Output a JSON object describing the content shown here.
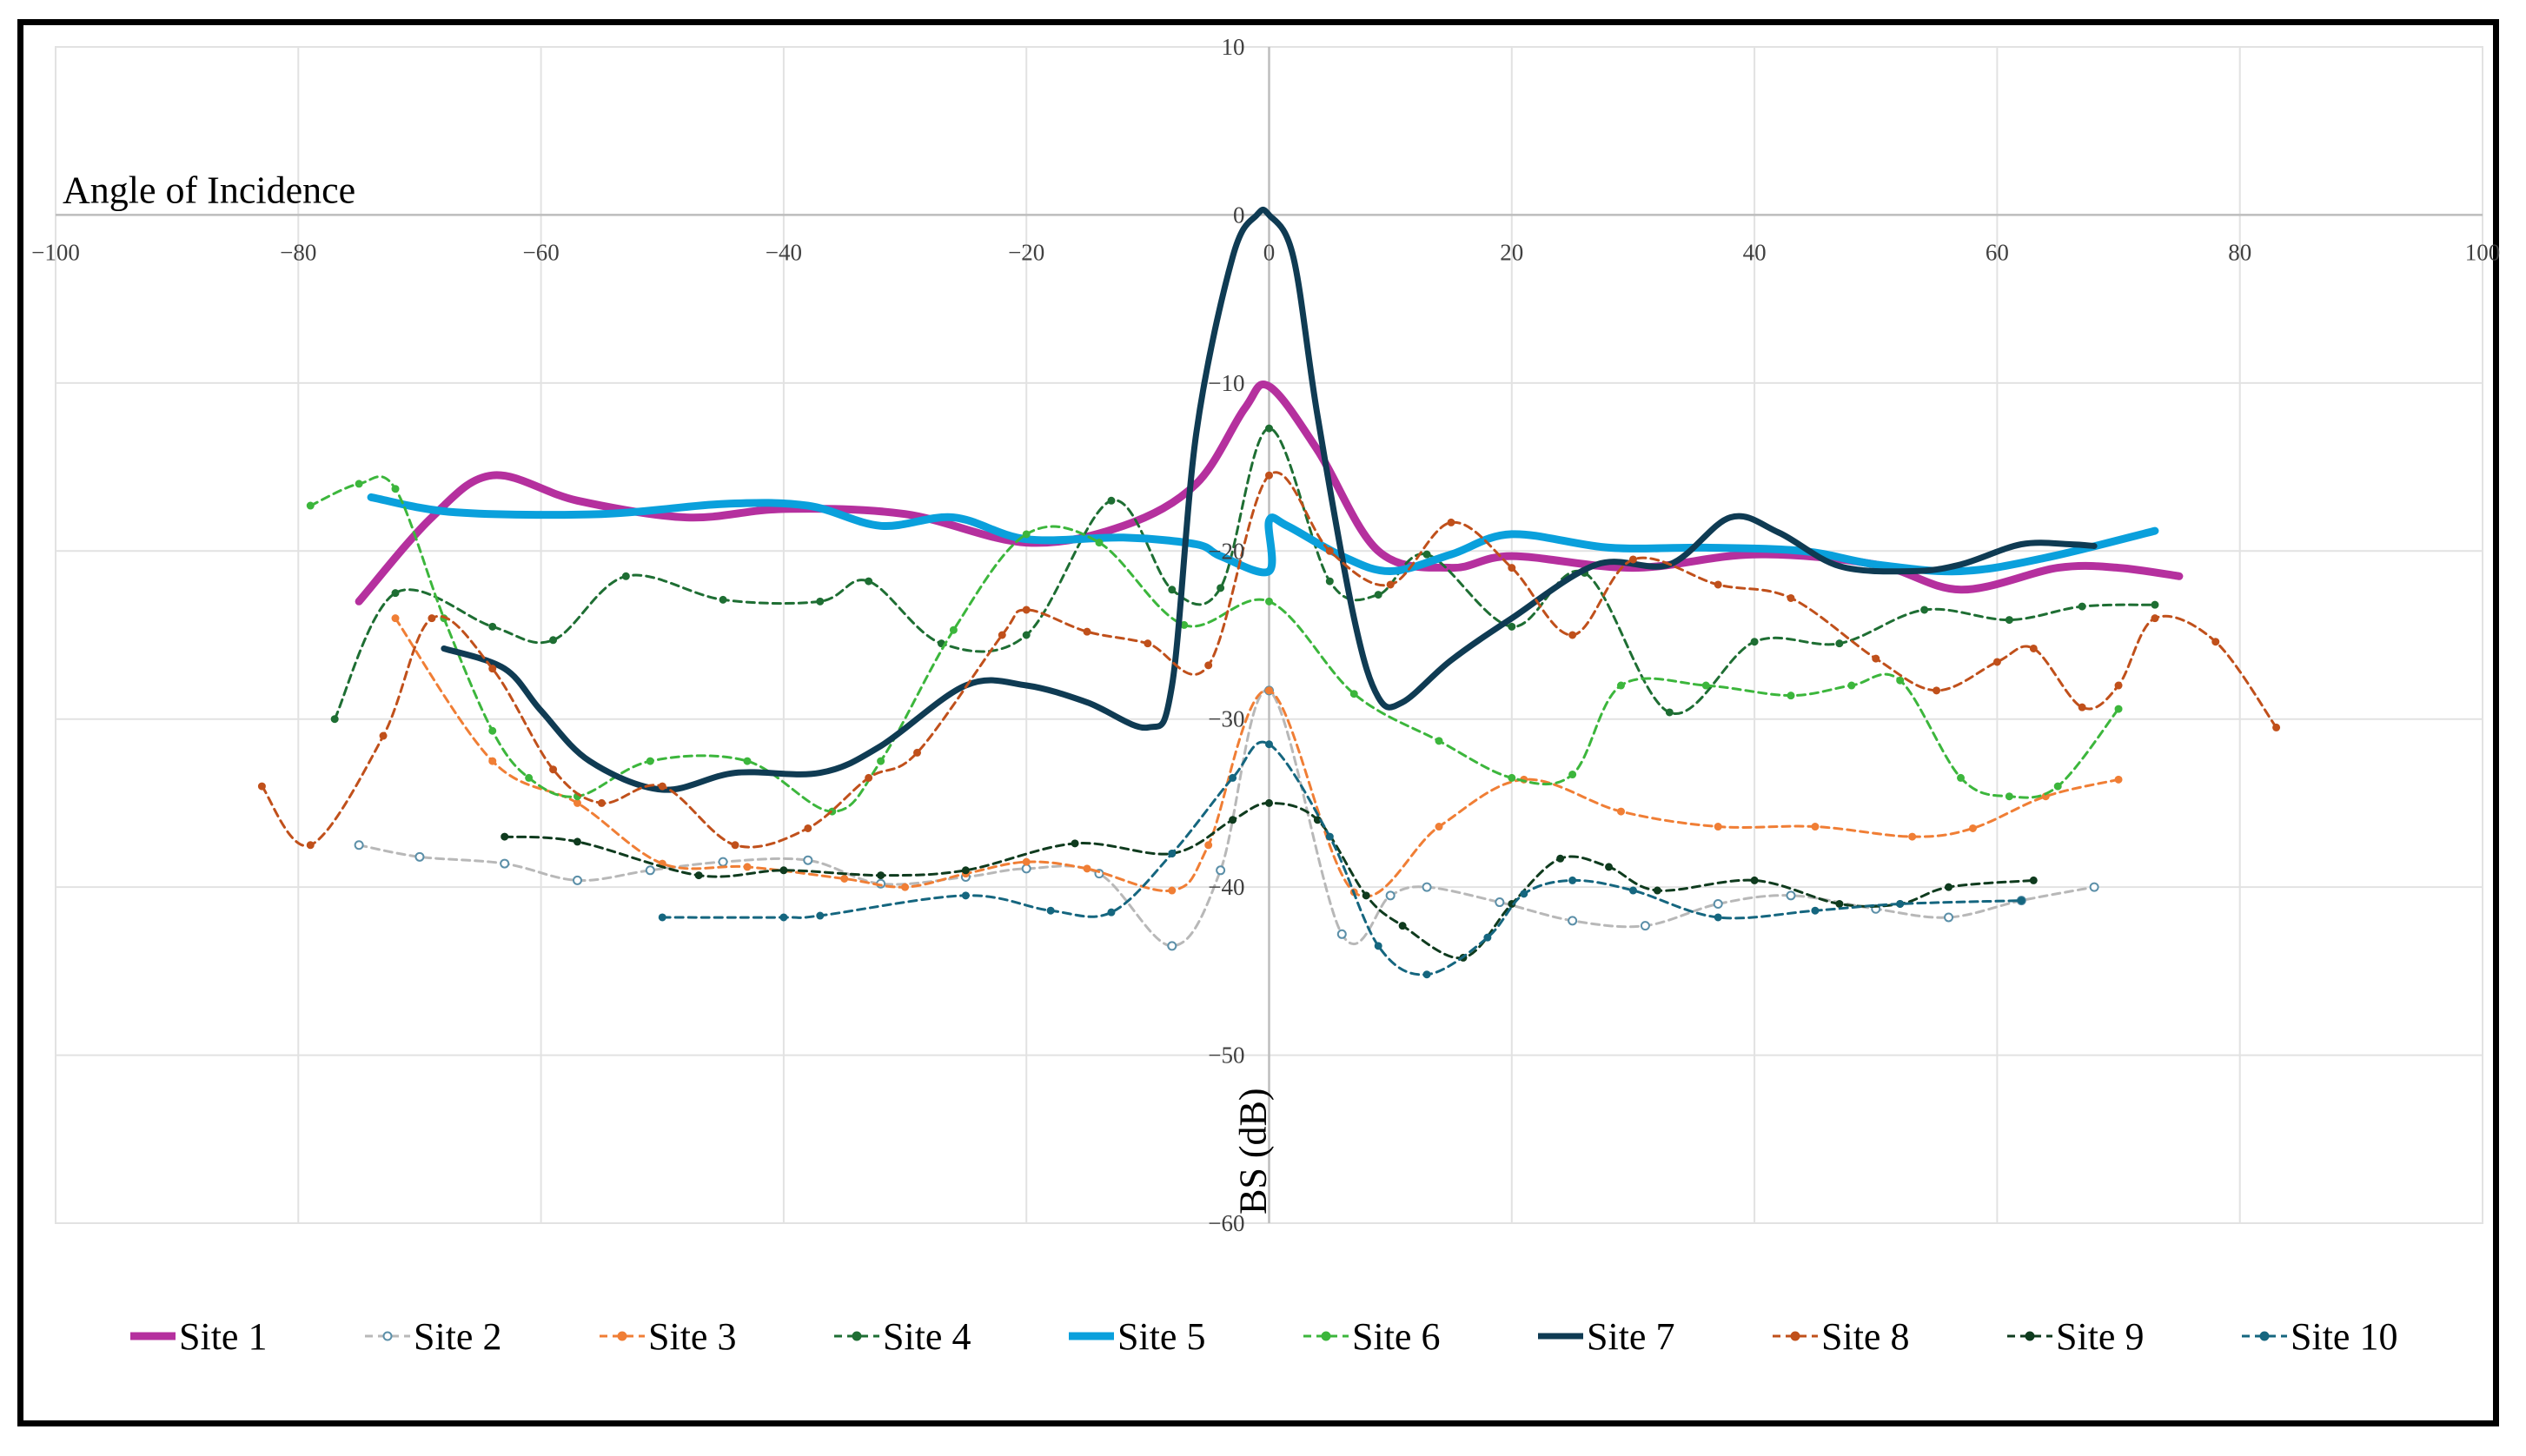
{
  "chart_data": {
    "type": "line",
    "title": "",
    "xlabel": "Angle of Incidence",
    "ylabel": "BS (dB)",
    "xlim": [
      -100,
      100
    ],
    "ylim": [
      -60,
      10
    ],
    "x_ticks": [
      -100,
      -80,
      -60,
      -40,
      -20,
      0,
      20,
      40,
      60,
      80,
      100
    ],
    "y_ticks": [
      10,
      0,
      -10,
      -20,
      -30,
      -40,
      -50,
      -60
    ],
    "grid": true,
    "legend_position": "bottom",
    "series": [
      {
        "name": "Site 1",
        "color": "#B5309E",
        "style": "solid",
        "width": 9,
        "markers": false,
        "x": [
          -75,
          -69,
          -64,
          -57,
          -48,
          -40,
          -30,
          -20,
          -12,
          -6,
          -2,
          0,
          4,
          9,
          15,
          20,
          30,
          40,
          50,
          57,
          65,
          70,
          75
        ],
        "y": [
          -23,
          -18,
          -15.5,
          -17,
          -18,
          -17.5,
          -17.8,
          -19.5,
          -18.5,
          -16,
          -11.5,
          -10.2,
          -14,
          -20,
          -21,
          -20.3,
          -21,
          -20.2,
          -20.8,
          -22.3,
          -21,
          -21,
          -21.5
        ]
      },
      {
        "name": "Site 2",
        "color": "#B8B8B8",
        "style": "dashed",
        "width": 3,
        "markers": true,
        "x": [
          -75,
          -70,
          -63,
          -57,
          -51,
          -45,
          -38,
          -32,
          -25,
          -20,
          -14,
          -8,
          -4,
          0,
          6,
          10,
          13,
          19,
          25,
          31,
          37,
          43,
          50,
          56,
          62,
          68
        ],
        "y": [
          -37.5,
          -38.2,
          -38.6,
          -39.6,
          -39,
          -38.5,
          -38.4,
          -39.8,
          -39.4,
          -38.9,
          -39.2,
          -43.5,
          -39,
          -28.3,
          -42.8,
          -40.5,
          -40,
          -40.9,
          -42,
          -42.3,
          -41,
          -40.5,
          -41.3,
          -41.8,
          -40.8,
          -40
        ]
      },
      {
        "name": "Site 3",
        "color": "#F07E35",
        "style": "dashed",
        "width": 3,
        "markers": true,
        "x": [
          -72,
          -64,
          -57,
          -50,
          -43,
          -35,
          -30,
          -25,
          -20,
          -15,
          -8,
          -5,
          0,
          7,
          14,
          21,
          29,
          37,
          45,
          53,
          58,
          64,
          70
        ],
        "y": [
          -24,
          -32.5,
          -35,
          -38.6,
          -38.8,
          -39.5,
          -40,
          -39.2,
          -38.5,
          -38.9,
          -40.2,
          -37.5,
          -28.3,
          -40.3,
          -36.4,
          -33.6,
          -35.5,
          -36.4,
          -36.4,
          -37,
          -36.5,
          -34.6,
          -33.6
        ]
      },
      {
        "name": "Site 4",
        "color": "#1E6E33",
        "style": "dashed",
        "width": 3,
        "markers": true,
        "x": [
          -77,
          -72,
          -64,
          -59,
          -53,
          -45,
          -37,
          -33,
          -27,
          -20,
          -13,
          -8,
          -4,
          0,
          5,
          9,
          13,
          20,
          26,
          33,
          40,
          47,
          54,
          61,
          67,
          73
        ],
        "y": [
          -30,
          -22.5,
          -24.5,
          -25.3,
          -21.5,
          -22.9,
          -23,
          -21.8,
          -25.5,
          -25,
          -17,
          -22.3,
          -22.2,
          -12.7,
          -21.8,
          -22.6,
          -20.2,
          -24.5,
          -21.3,
          -29.6,
          -25.4,
          -25.5,
          -23.5,
          -24.1,
          -23.3,
          -23.2
        ]
      },
      {
        "name": "Site 5",
        "color": "#0AA0DC",
        "style": "solid",
        "width": 9,
        "markers": false,
        "x": [
          -74,
          -67,
          -55,
          -45,
          -38,
          -32,
          -26,
          -20,
          -12,
          -6,
          -4,
          0,
          0,
          1.5,
          6,
          10,
          15,
          20,
          28,
          36,
          44,
          50,
          57,
          64,
          73
        ],
        "y": [
          -16.8,
          -17.7,
          -17.8,
          -17.2,
          -17.3,
          -18.5,
          -18,
          -19.3,
          -19.2,
          -19.6,
          -20.3,
          -21.2,
          -18.2,
          -18.5,
          -20.3,
          -21.2,
          -20.2,
          -19,
          -19.8,
          -19.8,
          -20,
          -20.8,
          -21.2,
          -20.4,
          -18.8
        ]
      },
      {
        "name": "Site 6",
        "color": "#3CB63C",
        "style": "dashed",
        "width": 3,
        "markers": true,
        "x": [
          -79,
          -75,
          -72,
          -68,
          -64,
          -61,
          -57,
          -51,
          -43,
          -36,
          -32,
          -26,
          -20,
          -14,
          -7,
          0,
          7,
          14,
          20,
          25,
          29,
          36,
          43,
          48,
          52,
          57,
          61,
          65,
          70
        ],
        "y": [
          -17.3,
          -16,
          -16.3,
          -24,
          -30.7,
          -33.5,
          -34.6,
          -32.5,
          -32.5,
          -35.5,
          -32.5,
          -24.7,
          -19,
          -19.5,
          -24.4,
          -23,
          -28.5,
          -31.3,
          -33.5,
          -33.3,
          -28,
          -28,
          -28.6,
          -28,
          -27.7,
          -33.5,
          -34.6,
          -34,
          -29.4
        ]
      },
      {
        "name": "Site 7",
        "color": "#0F3B53",
        "style": "solid",
        "width": 7,
        "markers": false,
        "x": [
          -68,
          -63,
          -60,
          -56,
          -50,
          -44,
          -37,
          -32,
          -25,
          -20,
          -15,
          -10,
          -8,
          -6,
          -3,
          -1,
          0,
          2,
          4,
          7,
          9,
          11,
          15,
          20,
          27,
          33,
          38,
          42,
          47,
          53,
          57,
          62,
          66,
          68
        ],
        "y": [
          -25.8,
          -27,
          -29.5,
          -32.5,
          -34.2,
          -33.2,
          -33.2,
          -31.6,
          -28,
          -28,
          -29,
          -30.5,
          -28,
          -13,
          -2.5,
          0,
          0,
          -2.5,
          -12,
          -24,
          -28.7,
          -29,
          -26.5,
          -24,
          -20.8,
          -20.8,
          -18,
          -18.9,
          -20.9,
          -21.2,
          -20.8,
          -19.6,
          -19.6,
          -19.7
        ]
      },
      {
        "name": "Site 8",
        "color": "#C0501B",
        "style": "dashed",
        "width": 3,
        "markers": true,
        "x": [
          -83,
          -79,
          -73,
          -69,
          -64,
          -59,
          -55,
          -50,
          -44,
          -38,
          -33,
          -29,
          -22,
          -20,
          -15,
          -10,
          -5,
          0,
          5,
          10,
          15,
          20,
          25,
          30,
          37,
          43,
          50,
          55,
          60,
          63,
          67,
          70,
          73,
          78,
          83
        ],
        "y": [
          -34,
          -37.5,
          -31,
          -24,
          -27,
          -33,
          -35,
          -34,
          -37.5,
          -36.5,
          -33.5,
          -32,
          -25,
          -23.5,
          -24.8,
          -25.5,
          -26.8,
          -15.5,
          -20,
          -22,
          -18.3,
          -21,
          -25,
          -20.5,
          -22,
          -22.8,
          -26.4,
          -28.3,
          -26.6,
          -25.8,
          -29.3,
          -28,
          -24,
          -25.4,
          -30.5
        ]
      },
      {
        "name": "Site 9",
        "color": "#0F3B1E",
        "style": "dashed",
        "width": 3,
        "markers": true,
        "x": [
          -63,
          -57,
          -47,
          -40,
          -32,
          -25,
          -16,
          -8,
          -3,
          0,
          4,
          8,
          11,
          16,
          20,
          24,
          28,
          32,
          40,
          47,
          52,
          56,
          63
        ],
        "y": [
          -37,
          -37.3,
          -39.3,
          -39,
          -39.3,
          -39,
          -37.4,
          -38,
          -36,
          -35,
          -36,
          -40.5,
          -42.3,
          -44.2,
          -41,
          -38.3,
          -38.8,
          -40.2,
          -39.6,
          -41,
          -41,
          -40,
          -39.6
        ]
      },
      {
        "name": "Site 10",
        "color": "#15667F",
        "style": "dashed",
        "width": 3,
        "markers": true,
        "x": [
          -50,
          -40,
          -37,
          -25,
          -18,
          -13,
          -8,
          -3,
          0,
          5,
          9,
          13,
          18,
          21,
          25,
          30,
          37,
          45,
          52,
          62
        ],
        "y": [
          -41.8,
          -41.8,
          -41.7,
          -40.5,
          -41.4,
          -41.5,
          -38,
          -33.5,
          -31.5,
          -37,
          -43.5,
          -45.2,
          -43,
          -40.4,
          -39.6,
          -40.2,
          -41.8,
          -41.4,
          -41,
          -40.8
        ]
      }
    ]
  }
}
